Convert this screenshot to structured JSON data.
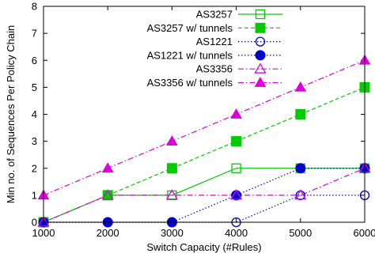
{
  "chart_data": {
    "type": "line",
    "xlabel": "Switch Capacity (#Rules)",
    "ylabel": "Min no. of Sequences Per Policy Chain",
    "xlim": [
      1000,
      6000
    ],
    "ylim": [
      0,
      8
    ],
    "xticks": [
      1000,
      2000,
      3000,
      4000,
      5000,
      6000
    ],
    "yticks": [
      0,
      1,
      2,
      3,
      4,
      5,
      6,
      7,
      8
    ],
    "grid": false,
    "legend_position": "top-left",
    "series": [
      {
        "name": "AS3257",
        "x": [
          1000,
          2000,
          3000,
          4000,
          5000,
          6000
        ],
        "y": [
          0,
          1,
          1,
          2,
          2,
          2
        ],
        "color": "#00cc00",
        "dash": "solid",
        "marker": "square-open"
      },
      {
        "name": "AS3257 w/ tunnels",
        "x": [
          1000,
          2000,
          3000,
          4000,
          5000,
          6000
        ],
        "y": [
          0,
          1,
          2,
          3,
          4,
          5
        ],
        "color": "#00cc00",
        "dash": "dashed",
        "marker": "square-filled"
      },
      {
        "name": "AS1221",
        "x": [
          1000,
          2000,
          3000,
          4000,
          5000,
          6000
        ],
        "y": [
          0,
          0,
          0,
          0,
          1,
          1
        ],
        "color": "#0000cc",
        "dash": "dotted",
        "marker": "circle-open"
      },
      {
        "name": "AS1221 w/ tunnels",
        "x": [
          1000,
          2000,
          3000,
          4000,
          5000,
          6000
        ],
        "y": [
          0,
          0,
          0,
          1,
          2,
          2
        ],
        "color": "#0000cc",
        "dash": "dotted",
        "marker": "circle-filled"
      },
      {
        "name": "AS3356",
        "x": [
          1000,
          2000,
          3000,
          4000,
          5000,
          6000
        ],
        "y": [
          0,
          1,
          1,
          1,
          1,
          2
        ],
        "color": "#dd00dd",
        "dash": "dashdot",
        "marker": "triangle-open"
      },
      {
        "name": "AS3356 w/ tunnels",
        "x": [
          1000,
          2000,
          3000,
          4000,
          5000,
          6000
        ],
        "y": [
          1,
          2,
          3,
          4,
          5,
          6
        ],
        "color": "#dd00dd",
        "dash": "dashdot",
        "marker": "triangle-filled"
      }
    ]
  }
}
